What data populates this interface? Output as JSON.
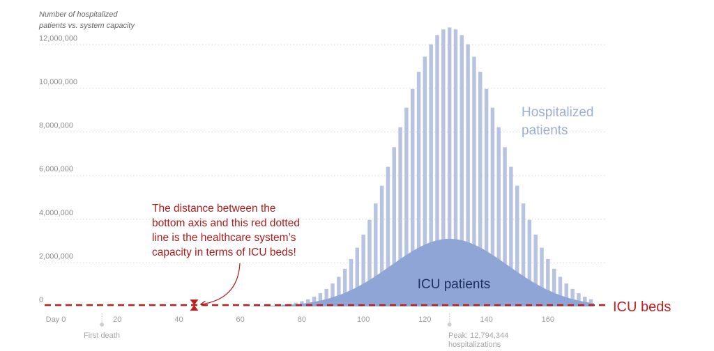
{
  "chart_data": {
    "type": "bar",
    "subtitle_lines": [
      "Number of hospitalized",
      "patients vs. system capacity"
    ],
    "x_axis": {
      "min": 0,
      "max": 175,
      "ticks": [
        {
          "value": 0,
          "label": "Day 0"
        },
        {
          "value": 20,
          "label": "20"
        },
        {
          "value": 40,
          "label": "40"
        },
        {
          "value": 60,
          "label": "60"
        },
        {
          "value": 80,
          "label": "80"
        },
        {
          "value": 100,
          "label": "100"
        },
        {
          "value": 120,
          "label": "120"
        },
        {
          "value": 140,
          "label": "140"
        },
        {
          "value": 160,
          "label": "160"
        }
      ]
    },
    "y_axis": {
      "min": 0,
      "max": 13000000,
      "ticks": [
        {
          "value": 0,
          "label": "0"
        },
        {
          "value": 2000000,
          "label": "2,000,000"
        },
        {
          "value": 4000000,
          "label": "4,000,000"
        },
        {
          "value": 6000000,
          "label": "6,000,000"
        },
        {
          "value": 8000000,
          "label": "8,000,000"
        },
        {
          "value": 10000000,
          "label": "10,000,000"
        },
        {
          "value": 12000000,
          "label": "12,000,000"
        }
      ],
      "grid": true
    },
    "series": [
      {
        "name": "Hospitalized patients",
        "label_lines": [
          "Hospitalized",
          "patients"
        ],
        "render": "bars",
        "color": "#b7c3e0",
        "bar_step_days": 2,
        "peak_day": 128,
        "peak_value": 12794344,
        "spread_days": 17,
        "first_day": 60,
        "last_day": 174
      },
      {
        "name": "ICU patients",
        "label": "ICU patients",
        "render": "area",
        "color": "#8fa5d6",
        "peak_day": 128,
        "peak_value": 3100000,
        "spread_days": 19,
        "first_day": 60,
        "last_day": 175
      }
    ],
    "reference_line": {
      "label": "ICU beds",
      "value": 60000,
      "color": "#bf1e1e",
      "style": "dashed"
    },
    "annotations": {
      "capacity_note": {
        "lines": [
          "The distance between the",
          "bottom axis and this red dotted",
          "line is the healthcare system’s",
          "capacity in terms of ICU beds!"
        ],
        "arrow_to_day": 45
      },
      "first_death": {
        "label": "First death",
        "day": 15
      },
      "peak": {
        "lines": [
          "Peak: 12,794,344",
          "hospitalizations"
        ],
        "day": 128
      }
    }
  }
}
